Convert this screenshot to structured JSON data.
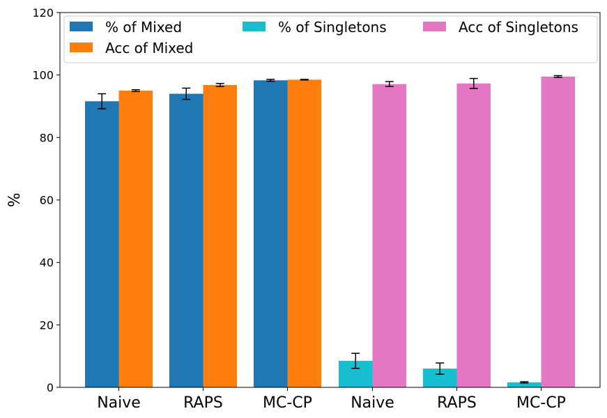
{
  "chart_data": {
    "type": "bar",
    "title": "",
    "xlabel": "",
    "ylabel": "%",
    "ylim": [
      0,
      120
    ],
    "yticks": [
      0,
      20,
      40,
      60,
      80,
      100,
      120
    ],
    "grid": false,
    "legend_position": "top",
    "groups": [
      {
        "name": "Mixed",
        "categories": [
          "Naive",
          "RAPS",
          "MC-CP"
        ],
        "series": [
          {
            "name": "% of Mixed",
            "color": "#1f77b4",
            "values": [
              91.6,
              94.0,
              98.3
            ],
            "errors": [
              2.4,
              1.8,
              0.3
            ]
          },
          {
            "name": "Acc of Mixed",
            "color": "#ff7f0e",
            "values": [
              95.0,
              96.8,
              98.5
            ],
            "errors": [
              0.3,
              0.5,
              0.1
            ]
          }
        ]
      },
      {
        "name": "Singletons",
        "categories": [
          "Naive",
          "RAPS",
          "MC-CP"
        ],
        "series": [
          {
            "name": "% of Singletons",
            "color": "#17becf",
            "values": [
              8.5,
              6.0,
              1.6
            ],
            "errors": [
              2.4,
              1.8,
              0.2
            ]
          },
          {
            "name": "Acc of Singletons",
            "color": "#e377c2",
            "values": [
              97.1,
              97.3,
              99.5
            ],
            "errors": [
              0.8,
              1.6,
              0.3
            ]
          }
        ]
      }
    ],
    "legend": [
      {
        "label": "% of Mixed",
        "color": "#1f77b4"
      },
      {
        "label": "% of Singletons",
        "color": "#17becf"
      },
      {
        "label": "Acc of Singletons",
        "color": "#e377c2"
      },
      {
        "label": "Acc of Mixed",
        "color": "#ff7f0e"
      }
    ]
  }
}
